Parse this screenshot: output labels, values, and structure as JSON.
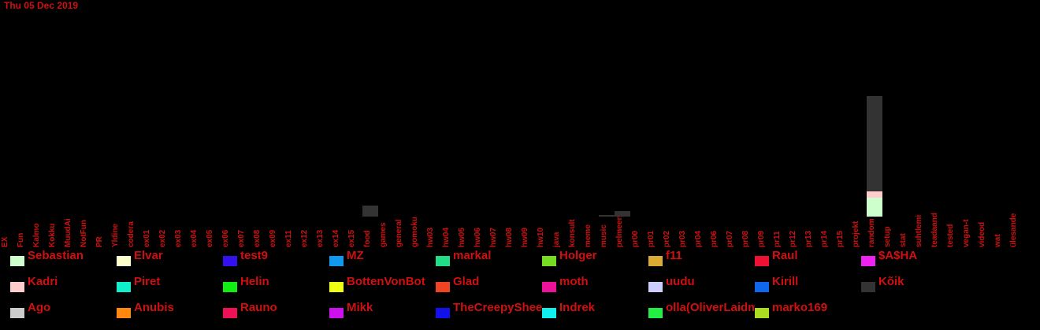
{
  "date_label": "Thu 05 Dec 2019",
  "chart_data": {
    "type": "bar",
    "stacked": true,
    "categories": [
      "EX",
      "Fun",
      "Kalmo",
      "Kokku",
      "MuudAi",
      "NotFun",
      "PR",
      "Yldine",
      "codera",
      "ex01",
      "ex02",
      "ex03",
      "ex04",
      "ex05",
      "ex06",
      "ex07",
      "ex08",
      "ex09",
      "ex11",
      "ex12",
      "ex13",
      "ex14",
      "ex15",
      "food",
      "games",
      "general",
      "gomoku",
      "hw03",
      "hw04",
      "hw05",
      "hw06",
      "hw07",
      "hw08",
      "hw09",
      "hw10",
      "java",
      "konsult",
      "meme",
      "music",
      "pelmeen",
      "pr00",
      "pr01",
      "pr02",
      "pr03",
      "pr04",
      "pr06",
      "pr07",
      "pr08",
      "pr09",
      "pr11",
      "pr12",
      "pr13",
      "pr14",
      "pr15",
      "projekt",
      "random",
      "setup",
      "stat",
      "suhtlemine",
      "teadaanded",
      "tested",
      "vegan-t",
      "videod",
      "wat",
      "ülesanded"
    ],
    "series": [
      {
        "name": "Sebastian",
        "color": "#ccffcc",
        "values": {
          "random": 24
        }
      },
      {
        "name": "Elvar",
        "color": "#ffffcc",
        "values": {}
      },
      {
        "name": "test9",
        "color": "#3311ee",
        "values": {}
      },
      {
        "name": "MZ",
        "color": "#1199ee",
        "values": {}
      },
      {
        "name": "markal",
        "color": "#22dd88",
        "values": {}
      },
      {
        "name": "Holger",
        "color": "#77dd22",
        "values": {}
      },
      {
        "name": "f11",
        "color": "#ddaa33",
        "values": {}
      },
      {
        "name": "Raul",
        "color": "#ee1133",
        "values": {}
      },
      {
        "name": "$A$HA",
        "color": "#ee22ee",
        "values": {}
      },
      {
        "name": "Kadri",
        "color": "#ffcccc",
        "values": {
          "random": 8
        }
      },
      {
        "name": "Piret",
        "color": "#11eecc",
        "values": {}
      },
      {
        "name": "Helin",
        "color": "#11ee11",
        "values": {}
      },
      {
        "name": "BottenVonBot",
        "color": "#eeff11",
        "values": {}
      },
      {
        "name": "Glad",
        "color": "#ee4422",
        "values": {}
      },
      {
        "name": "moth",
        "color": "#ee1199",
        "values": {}
      },
      {
        "name": "uudu",
        "color": "#ccccff",
        "values": {}
      },
      {
        "name": "Kirill",
        "color": "#1166ee",
        "values": {}
      },
      {
        "name": "Kõik",
        "color": "#333333",
        "values": {
          "food": 14,
          "music": 2,
          "pelmeen": 7,
          "random": 121
        }
      },
      {
        "name": "Ago",
        "color": "#cccccc",
        "values": {}
      },
      {
        "name": "Anubis",
        "color": "#ff8811",
        "values": {}
      },
      {
        "name": "Rauno",
        "color": "#ee1155",
        "values": {}
      },
      {
        "name": "Mikk",
        "color": "#cc11ee",
        "values": {}
      },
      {
        "name": "TheCreepySheep",
        "color": "#1111ee",
        "values": {}
      },
      {
        "name": "Indrek",
        "color": "#11eeee",
        "values": {}
      },
      {
        "name": "olla(OliverLaidma)",
        "color": "#22ee44",
        "values": {}
      },
      {
        "name": "marko169",
        "color": "#aadd22",
        "values": {}
      }
    ],
    "ylim": [
      0,
      155
    ],
    "grid": false,
    "legend": "bottom"
  }
}
